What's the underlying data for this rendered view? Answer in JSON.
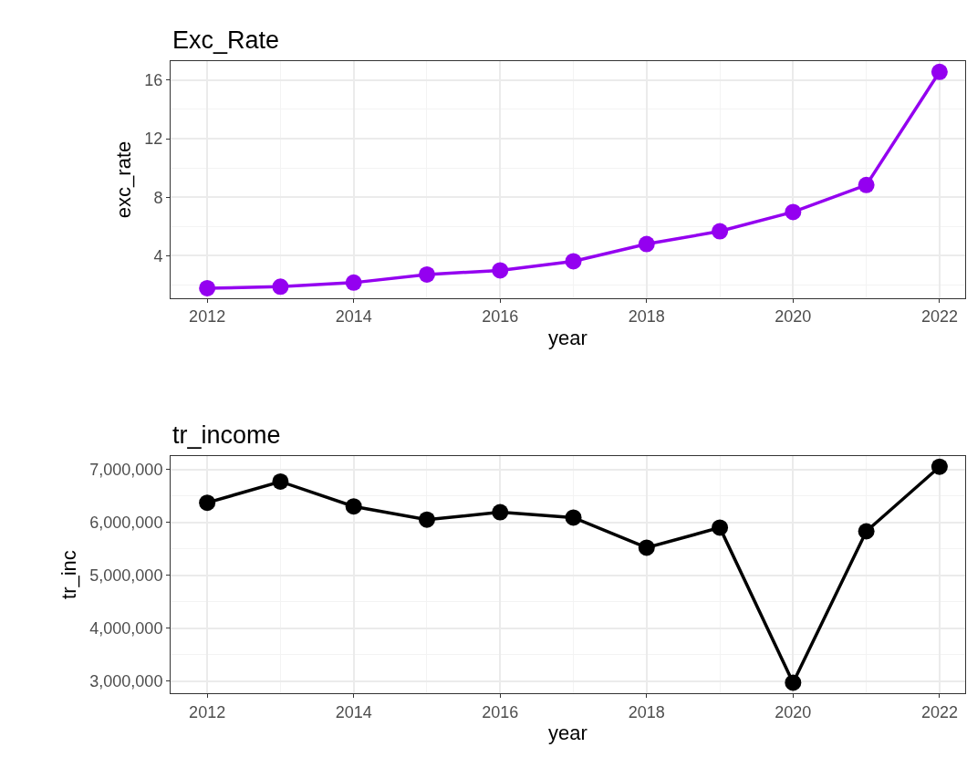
{
  "chart_data": [
    {
      "type": "line",
      "title": "Exc_Rate",
      "xlabel": "year",
      "ylabel": "exc_rate",
      "x": [
        2012,
        2013,
        2014,
        2015,
        2016,
        2017,
        2018,
        2019,
        2020,
        2021,
        2022
      ],
      "series": [
        {
          "color": "#9400f0",
          "values": [
            1.78,
            1.88,
            2.16,
            2.72,
            3.0,
            3.62,
            4.8,
            5.67,
            6.99,
            8.83,
            16.56
          ]
        }
      ],
      "xlim": [
        2011.5,
        2022.35
      ],
      "xticks": [
        2012,
        2014,
        2016,
        2018,
        2020,
        2022
      ],
      "ylim": [
        1.1,
        17.3
      ],
      "yticks": [
        4,
        8,
        12,
        16
      ],
      "grid": true,
      "marker": "circle",
      "line_style": "solid"
    },
    {
      "type": "line",
      "title": "tr_income",
      "xlabel": "year",
      "ylabel": "tr_inc",
      "x": [
        2012,
        2013,
        2014,
        2015,
        2016,
        2017,
        2018,
        2019,
        2020,
        2021,
        2022
      ],
      "series": [
        {
          "color": "#000000",
          "values": [
            6370000,
            6770000,
            6300000,
            6050000,
            6190000,
            6090000,
            5520000,
            5900000,
            2970000,
            5830000,
            7050000
          ]
        }
      ],
      "xlim": [
        2011.5,
        2022.35
      ],
      "xticks": [
        2012,
        2014,
        2016,
        2018,
        2020,
        2022
      ],
      "ylim": [
        2770000,
        7250000
      ],
      "yticks": [
        {
          "value": 3000000,
          "label": "3,000,000"
        },
        {
          "value": 4000000,
          "label": "4,000,000"
        },
        {
          "value": 5000000,
          "label": "5,000,000"
        },
        {
          "value": 6000000,
          "label": "6,000,000"
        },
        {
          "value": 7000000,
          "label": "7,000,000"
        }
      ],
      "grid": true,
      "marker": "circle",
      "line_style": "solid"
    }
  ]
}
